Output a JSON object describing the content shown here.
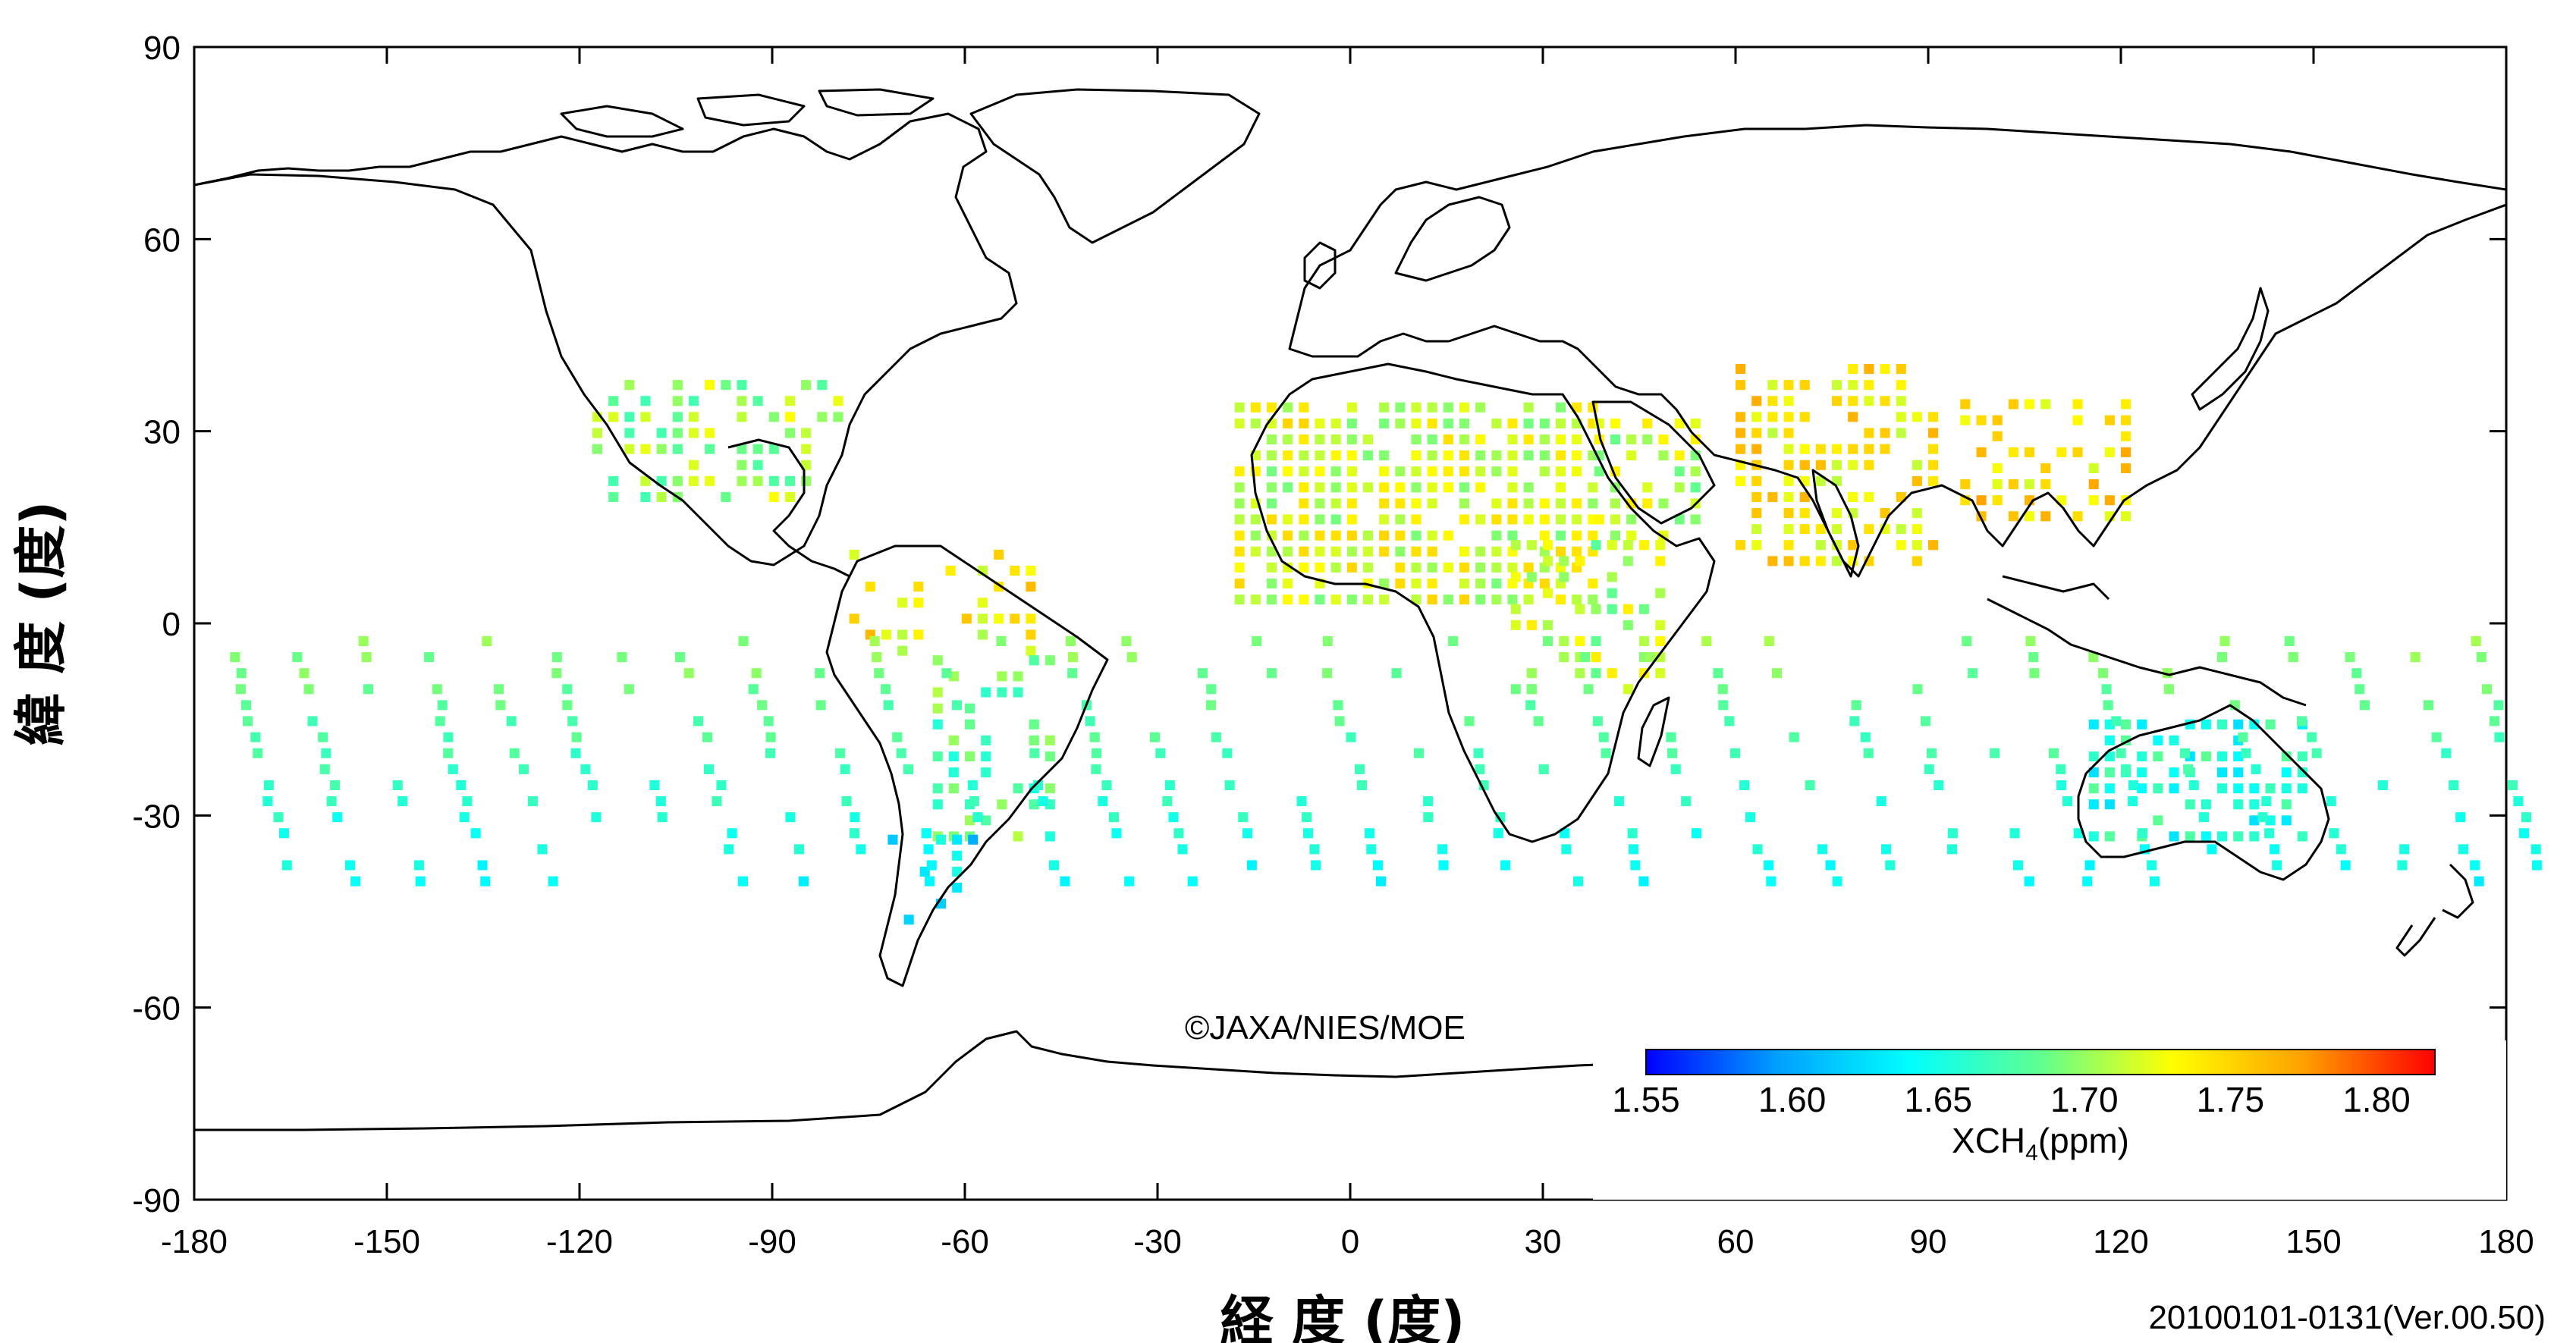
{
  "map": {
    "x_axis_title": "経 度 (度)",
    "y_axis_title": "緯 度 (度)",
    "x_ticks": [
      "-180",
      "-150",
      "-120",
      "-90",
      "-60",
      "-30",
      "0",
      "30",
      "60",
      "90",
      "120",
      "150",
      "180"
    ],
    "y_ticks": [
      "90",
      "60",
      "30",
      "0",
      "-30",
      "-60",
      "-90"
    ],
    "x_range": [
      -180,
      180
    ],
    "y_range": [
      -90,
      90
    ],
    "projection": "equirectangular",
    "credit": "©JAXA/NIES/MOE",
    "period_label": "20100101-0131(Ver.00.50)",
    "colorbar": {
      "label_main": "XCH",
      "label_sub": "4",
      "label_unit": "(ppm)",
      "min": 1.55,
      "max": 1.82,
      "tick_labels": [
        "1.55",
        "1.60",
        "1.65",
        "1.70",
        "1.75",
        "1.80"
      ],
      "colors": [
        "#0000ff",
        "#00a0ff",
        "#00ffff",
        "#60ff90",
        "#ffff00",
        "#ffa000",
        "#ff0000"
      ]
    }
  }
}
